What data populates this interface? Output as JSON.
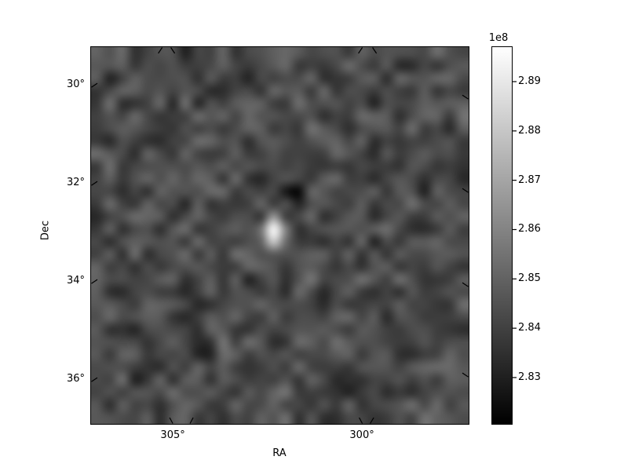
{
  "figure": {
    "background_color": "#ffffff",
    "text_color": "#000000"
  },
  "chart_data": {
    "type": "heatmap",
    "title": "",
    "xlabel": "RA",
    "ylabel": "Dec",
    "x_axis": {
      "label": "RA",
      "ticks": [
        {
          "value_deg": 305,
          "label": "305°"
        },
        {
          "value_deg": 300,
          "label": "300°"
        }
      ],
      "range_deg_left_to_right": [
        307.16,
        297.18
      ]
    },
    "y_axis": {
      "label": "Dec",
      "ticks": [
        {
          "value_deg": 30,
          "label": "30°"
        },
        {
          "value_deg": 32,
          "label": "32°"
        },
        {
          "value_deg": 34,
          "label": "34°"
        },
        {
          "value_deg": 36,
          "label": "36°"
        }
      ],
      "range_deg_top_to_bottom": [
        29.23,
        36.91
      ]
    },
    "colorbar": {
      "offset_label": "1e8",
      "vmin_1e8": 2.8206,
      "vmax_1e8": 2.897,
      "low_color": "#000000",
      "high_color": "#ffffff",
      "ticks": [
        {
          "value_1e8": 2.89,
          "label": "2.89"
        },
        {
          "value_1e8": 2.88,
          "label": "2.88"
        },
        {
          "value_1e8": 2.87,
          "label": "2.87"
        },
        {
          "value_1e8": 2.86,
          "label": "2.86"
        },
        {
          "value_1e8": 2.85,
          "label": "2.85"
        },
        {
          "value_1e8": 2.84,
          "label": "2.84"
        },
        {
          "value_1e8": 2.83,
          "label": "2.83"
        }
      ]
    },
    "image": {
      "description": "smoothed grayscale noise field with one bright point source and a small dark spot",
      "noise": {
        "grid_nx": 30,
        "grid_ny": 30,
        "mean_level": 0.29,
        "amplitude": 0.18,
        "seed": 77
      },
      "bright_source": {
        "ra_deg": 302.2,
        "dec_deg": 32.9,
        "peak_level": 1.0
      },
      "dark_spots": [
        {
          "ra_deg": 301.6,
          "dec_deg": 32.2,
          "level": 0.02
        }
      ]
    }
  }
}
